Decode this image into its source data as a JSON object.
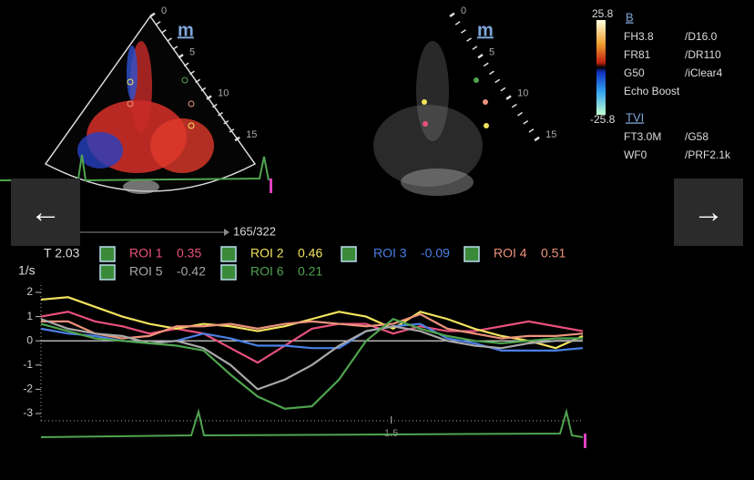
{
  "left_image": {
    "depth_labels": [
      "0",
      "5",
      "10",
      "15"
    ],
    "logo": "m"
  },
  "right_image": {
    "depth_labels": [
      "0",
      "5",
      "10",
      "15"
    ],
    "logo": "m"
  },
  "color_scale": {
    "max": "25.8",
    "min": "-25.8"
  },
  "b_mode": {
    "header": "B",
    "params": [
      [
        "FH3.8",
        "/D16.0"
      ],
      [
        "FR81",
        "/DR110"
      ],
      [
        "G50",
        "/iClear4"
      ],
      [
        "Echo Boost"
      ]
    ]
  },
  "tvi": {
    "header": "TVI",
    "params": [
      [
        "FT3.0M",
        "/G58"
      ],
      [
        "WF0",
        "/PRF2.1k"
      ]
    ]
  },
  "frame_counter": "165/322",
  "nav": {
    "prev": "←",
    "next": "→"
  },
  "cursor": "T 2.03",
  "chart_data": {
    "type": "line",
    "y_label": "1/s",
    "x": [
      0,
      0.116,
      0.232,
      0.348,
      0.464,
      0.58,
      0.696,
      0.812,
      0.928,
      1.044,
      1.16,
      1.276,
      1.392,
      1.508,
      1.624,
      1.74,
      1.856,
      1.972,
      2.088,
      2.204,
      2.32
    ],
    "xlim": [
      0,
      2.32
    ],
    "xticks": [
      1.5
    ],
    "ylim": [
      -3.3,
      2.3
    ],
    "yticks": [
      2,
      1,
      0,
      -1,
      -2,
      -3
    ],
    "series": [
      {
        "name": "ROI 1",
        "value": 0.35,
        "color": "#e8507c",
        "values": [
          1.0,
          1.2,
          0.8,
          0.6,
          0.3,
          0.5,
          0.3,
          -0.3,
          -0.9,
          -0.2,
          0.5,
          0.7,
          0.7,
          0.3,
          0.6,
          0.4,
          0.4,
          0.6,
          0.8,
          0.6,
          0.4
        ]
      },
      {
        "name": "ROI 2",
        "value": 0.46,
        "color": "#f2e35e",
        "values": [
          1.7,
          1.8,
          1.4,
          1.0,
          0.7,
          0.5,
          0.7,
          0.6,
          0.4,
          0.6,
          0.9,
          1.2,
          1.0,
          0.5,
          1.2,
          0.9,
          0.5,
          0.2,
          0.0,
          -0.3,
          0.2
        ]
      },
      {
        "name": "ROI 3",
        "value": -0.09,
        "color": "#4a80e6",
        "values": [
          0.5,
          0.3,
          0.2,
          0.0,
          -0.1,
          0.0,
          0.3,
          0.1,
          -0.2,
          -0.2,
          -0.3,
          -0.3,
          0.4,
          0.6,
          0.7,
          0.1,
          -0.1,
          -0.4,
          -0.4,
          -0.4,
          -0.3
        ]
      },
      {
        "name": "ROI 4",
        "value": 0.51,
        "color": "#ec937c",
        "values": [
          0.8,
          0.8,
          0.3,
          0.1,
          0.2,
          0.6,
          0.6,
          0.7,
          0.5,
          0.7,
          0.8,
          0.7,
          0.6,
          0.7,
          1.1,
          0.5,
          0.3,
          0.1,
          0.2,
          0.2,
          0.3
        ]
      },
      {
        "name": "ROI 5",
        "value": -0.42,
        "color": "#a8a8a8",
        "values": [
          0.9,
          0.5,
          0.3,
          0.2,
          -0.1,
          0.0,
          -0.3,
          -1.0,
          -2.0,
          -1.6,
          -1.0,
          -0.2,
          0.4,
          0.6,
          0.4,
          0.0,
          -0.2,
          -0.3,
          -0.1,
          0.0,
          0.0
        ]
      },
      {
        "name": "ROI 6",
        "value": 0.21,
        "color": "#4fa44f",
        "values": [
          0.7,
          0.4,
          0.1,
          0.0,
          -0.1,
          -0.2,
          -0.4,
          -1.4,
          -2.3,
          -2.8,
          -2.7,
          -1.6,
          0.0,
          0.9,
          0.5,
          0.2,
          0.0,
          -0.1,
          0.0,
          0.1,
          0.1
        ]
      }
    ]
  }
}
